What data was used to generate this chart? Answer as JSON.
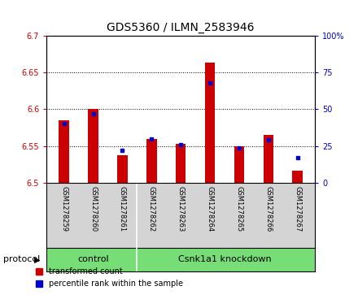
{
  "title": "GDS5360 / ILMN_2583946",
  "samples": [
    "GSM1278259",
    "GSM1278260",
    "GSM1278261",
    "GSM1278262",
    "GSM1278263",
    "GSM1278264",
    "GSM1278265",
    "GSM1278266",
    "GSM1278267"
  ],
  "red_values": [
    6.585,
    6.6,
    6.538,
    6.56,
    6.553,
    6.663,
    6.55,
    6.565,
    6.517
  ],
  "blue_values_pct": [
    40,
    47,
    22,
    30,
    26,
    68,
    24,
    29,
    17
  ],
  "ylim": [
    6.5,
    6.7
  ],
  "y2lim": [
    0,
    100
  ],
  "y_ticks": [
    6.5,
    6.55,
    6.6,
    6.65,
    6.7
  ],
  "y2_ticks": [
    0,
    25,
    50,
    75,
    100
  ],
  "y_tick_labels": [
    "6.5",
    "6.55",
    "6.6",
    "6.65",
    "6.7"
  ],
  "y2_tick_labels": [
    "0",
    "25",
    "50",
    "75",
    "100%"
  ],
  "y_color": "#cc0000",
  "y2_color": "#0000cc",
  "control_indices": [
    0,
    1,
    2
  ],
  "knockdown_indices": [
    3,
    4,
    5,
    6,
    7,
    8
  ],
  "control_label": "control",
  "knockdown_label": "Csnk1a1 knockdown",
  "protocol_label": "protocol",
  "bar_width": 0.35,
  "red_bar_color": "#cc0000",
  "blue_bar_color": "#0000cc",
  "sample_bg": "#d4d4d4",
  "protocol_bg": "#77dd77",
  "plot_bg": "#ffffff",
  "legend_items": [
    "transformed count",
    "percentile rank within the sample"
  ],
  "title_fontsize": 10,
  "tick_fontsize": 7,
  "label_fontsize": 6,
  "protocol_fontsize": 8
}
